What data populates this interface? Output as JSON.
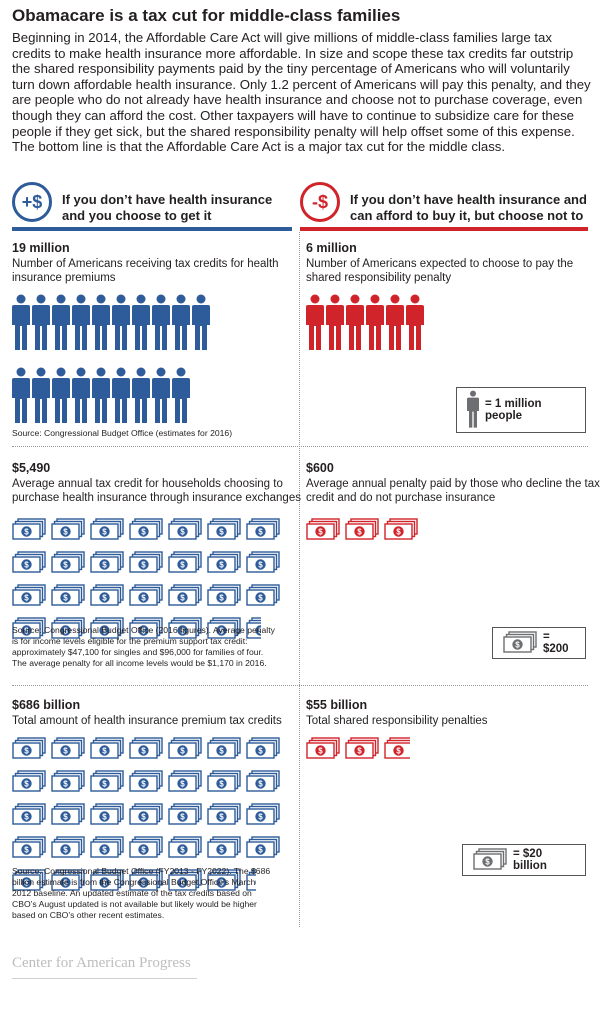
{
  "title": "Obamacare is a tax cut for middle-class families",
  "intro": "Beginning in 2014, the Affordable Care Act will give millions of middle-class families large tax credits to make health insurance more affordable. In size and scope these tax credits far outstrip the shared responsibility payments paid by the tiny percentage of Americans who will voluntarily turn down affordable health insurance. Only 1.2 percent of Americans will pay this penalty, and they are people who do not already have health insurance and choose not to purchase coverage, even though they can afford the cost.  Other taxpayers will have to continue to subsidize care for these people if they get sick, but the shared responsibility penalty will help offset some of this expense. The bottom line is that the Affordable Care Act is a major tax cut for the middle class.",
  "colors": {
    "blue": "#2e5b99",
    "red": "#d1232a",
    "gray": "#6d6e71"
  },
  "left_header": {
    "icon_text": "+$",
    "line1": "If you don’t have health insurance",
    "line2": "and you choose to get it"
  },
  "right_header": {
    "icon_text": "-$",
    "line1": "If you don’t have health insurance and",
    "line2": "can afford to buy it, but choose not to"
  },
  "sections": {
    "people_left": {
      "value": "19 million",
      "desc1": "Number of Americans receiving tax credits for health",
      "desc2": "insurance premiums",
      "source": "Source: Congressional Budget Office (estimates for 2016)"
    },
    "people_right": {
      "value": "6 million",
      "desc1": "Number of Americans expected to choose to pay the",
      "desc2": "shared responsibility penalty",
      "legend": "= 1 million people"
    },
    "credit_left": {
      "value": "$5,490",
      "desc1": "Average annual tax credit for households choosing to",
      "desc2": "purchase health insurance through insurance exchanges",
      "source1": "Source:  Congressional Budget Office (2016 figures).  Average penalty",
      "source2": "is for income levels eligible for the premium support tax credit:",
      "source3": "approximately $47,100 for singles and $96,000 for families of four.",
      "source4": "The average penalty for all income levels would be $1,170 in 2016."
    },
    "credit_right": {
      "value": "$600",
      "desc1": "Average annual penalty paid by those who decline the tax",
      "desc2": "credit and do not purchase insurance",
      "legend": "= $200"
    },
    "total_left": {
      "value": "$686 billion",
      "desc1": "Total amount of health insurance premium tax credits",
      "source1": "Source: Congressional Budget Office (FY2013 - FY2022). The $686",
      "source2": "billion estimate is from the Congressional Budget Office’s March",
      "source3": "2012 baseline. An updated estimate of the tax credits based on",
      "source4": "CBO’s August updated is not available but likely would be higher",
      "source5": "based on CBO’s other recent estimates."
    },
    "total_right": {
      "value": "$55 billion",
      "desc1": "Total shared responsibility penalties",
      "legend": "= $20 billion"
    }
  },
  "chart_data": [
    {
      "type": "pictogram",
      "unit": "1 million people",
      "series": [
        {
          "name": "If you don’t have health insurance and you choose to get it",
          "value": 19,
          "icons": 19,
          "color": "#2e5b99"
        },
        {
          "name": "If you don’t have health insurance and can afford to buy it, but choose not to",
          "value": 6,
          "icons": 6,
          "color": "#d1232a"
        }
      ]
    },
    {
      "type": "pictogram",
      "unit": "$200",
      "series": [
        {
          "name": "If you don’t have health insurance and you choose to get it",
          "value": 5490,
          "icons": 27.45,
          "color": "#2e5b99"
        },
        {
          "name": "If you don’t have health insurance and can afford to buy it, but choose not to",
          "value": 600,
          "icons": 3,
          "color": "#d1232a"
        }
      ]
    },
    {
      "type": "pictogram",
      "unit": "$20 billion",
      "series": [
        {
          "name": "If you don’t have health insurance and you choose to get it",
          "value": 686,
          "icons": 34.3,
          "color": "#2e5b99"
        },
        {
          "name": "If you don’t have health insurance and can afford to buy it, but choose not to",
          "value": 55,
          "icons": 2.75,
          "color": "#d1232a"
        }
      ]
    }
  ],
  "footer": "Center for American Progress"
}
